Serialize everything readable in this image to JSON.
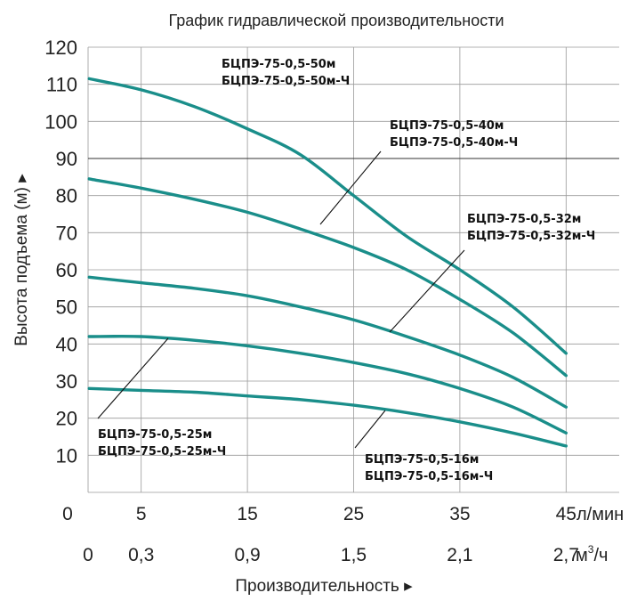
{
  "chart_data": {
    "type": "line",
    "title": "График гидравлической производительности",
    "ylabel": "Высота подъема (м)",
    "xlabel": "Производительность",
    "x_unit_primary": "л/мин",
    "x_unit_secondary_base": "м",
    "x_unit_secondary_exp": "3",
    "x_unit_secondary_tail": "/ч",
    "y_ticks": [
      "10",
      "20",
      "30",
      "40",
      "50",
      "60",
      "70",
      "80",
      "90",
      "100",
      "110",
      "120"
    ],
    "x_ticks_primary": [
      {
        "x": 0,
        "label": "0"
      },
      {
        "x": 5,
        "label": "5"
      },
      {
        "x": 15,
        "label": "15"
      },
      {
        "x": 25,
        "label": "25"
      },
      {
        "x": 35,
        "label": "35"
      },
      {
        "x": 45,
        "label": "45"
      }
    ],
    "x_ticks_secondary": [
      {
        "x": 0,
        "label": "0"
      },
      {
        "x": 5,
        "label": "0,3"
      },
      {
        "x": 15,
        "label": "0,9"
      },
      {
        "x": 25,
        "label": "1,5"
      },
      {
        "x": 35,
        "label": "2,1"
      },
      {
        "x": 45,
        "label": "2,7"
      }
    ],
    "xlim": [
      0,
      50
    ],
    "ylim": [
      0,
      120
    ],
    "grid": true,
    "series": [
      {
        "name": "БЦПЭ-75-0,5-50м",
        "name2": "БЦПЭ-75-0,5-50м-Ч",
        "points": [
          [
            0,
            111.5
          ],
          [
            5,
            108.5
          ],
          [
            10,
            104
          ],
          [
            15,
            98
          ],
          [
            20,
            91
          ],
          [
            25,
            80
          ],
          [
            30,
            69
          ],
          [
            35,
            60
          ],
          [
            40,
            50
          ],
          [
            45,
            37.5
          ]
        ]
      },
      {
        "name": "БЦПЭ-75-0,5-40м",
        "name2": "БЦПЭ-75-0,5-40м-Ч",
        "points": [
          [
            0,
            84.5
          ],
          [
            5,
            82
          ],
          [
            10,
            79
          ],
          [
            15,
            75.5
          ],
          [
            20,
            71
          ],
          [
            25,
            66
          ],
          [
            30,
            60
          ],
          [
            35,
            52
          ],
          [
            40,
            43
          ],
          [
            45,
            31.5
          ]
        ]
      },
      {
        "name": "БЦПЭ-75-0,5-32м",
        "name2": "БЦПЭ-75-0,5-32м-Ч",
        "points": [
          [
            0,
            58
          ],
          [
            5,
            56.5
          ],
          [
            10,
            55
          ],
          [
            15,
            53
          ],
          [
            20,
            50
          ],
          [
            25,
            46.5
          ],
          [
            30,
            42
          ],
          [
            35,
            37
          ],
          [
            40,
            31
          ],
          [
            45,
            23
          ]
        ]
      },
      {
        "name": "БЦПЭ-75-0,5-25м",
        "name2": "БЦПЭ-75-0,5-25м-Ч",
        "points": [
          [
            0,
            42
          ],
          [
            5,
            42
          ],
          [
            10,
            41
          ],
          [
            15,
            39.5
          ],
          [
            20,
            37.5
          ],
          [
            25,
            35
          ],
          [
            30,
            32
          ],
          [
            35,
            28
          ],
          [
            40,
            23
          ],
          [
            45,
            16
          ]
        ]
      },
      {
        "name": "БЦПЭ-75-0,5-16м",
        "name2": "БЦПЭ-75-0,5-16м-Ч",
        "points": [
          [
            0,
            28
          ],
          [
            5,
            27.5
          ],
          [
            10,
            27
          ],
          [
            15,
            26
          ],
          [
            20,
            25
          ],
          [
            25,
            23.5
          ],
          [
            30,
            21.5
          ],
          [
            35,
            19
          ],
          [
            40,
            16
          ],
          [
            45,
            12.5
          ]
        ]
      }
    ],
    "colors": {
      "curve": "#1a8e8a",
      "grid": "#9a9a9a"
    }
  }
}
